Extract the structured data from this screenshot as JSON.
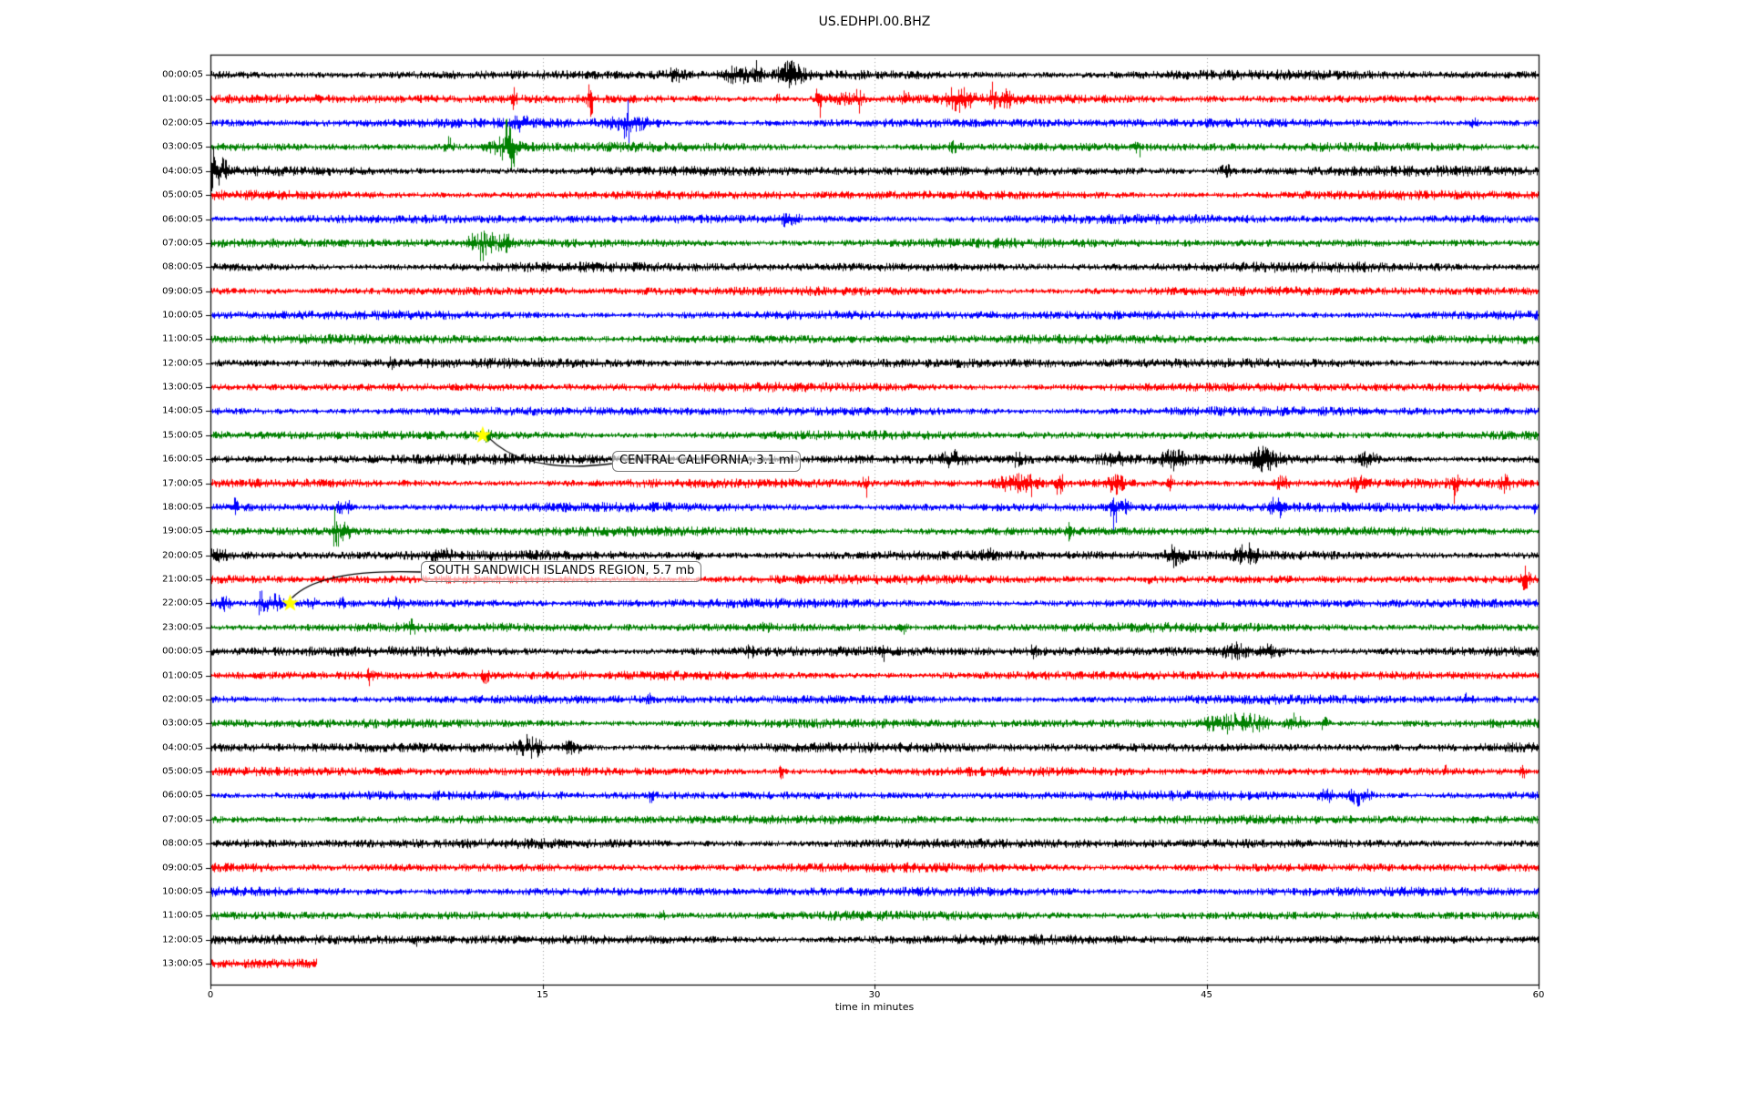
{
  "title": "US.EDHPI.00.BHZ",
  "chart_data": {
    "type": "line",
    "subtype": "seismogram-helicorder",
    "title": "US.EDHPI.00.BHZ",
    "xlabel": "time in minutes",
    "x_range": [
      0,
      60
    ],
    "x_ticks": [
      0,
      15,
      30,
      45,
      60
    ],
    "grid": {
      "vertical_dotted_at": [
        15,
        30,
        45
      ],
      "color": "#999999"
    },
    "trace_color_cycle": [
      "#000000",
      "#ff0000",
      "#0000ff",
      "#008000"
    ],
    "marker_color": "#ffff00",
    "rows": [
      {
        "label": "00:00:05",
        "color": "#000000",
        "duration": 60,
        "events": [
          [
            21.0,
            2,
            0.3
          ],
          [
            23.8,
            2.5,
            0.35
          ],
          [
            24.7,
            4.5,
            0.1
          ],
          [
            26.2,
            3,
            0.4
          ]
        ]
      },
      {
        "label": "01:00:05",
        "color": "#ff0000",
        "duration": 60,
        "events": [
          [
            13.7,
            3,
            0.08
          ],
          [
            17.15,
            6,
            0.08
          ],
          [
            25.6,
            3,
            0.08
          ],
          [
            27.5,
            9,
            0.09
          ],
          [
            28.4,
            2.5,
            0.5
          ],
          [
            29.3,
            4,
            0.15
          ],
          [
            31.4,
            3,
            0.1
          ],
          [
            33.8,
            3,
            0.4
          ],
          [
            35.3,
            4,
            0.08
          ],
          [
            35.9,
            2.5,
            0.2
          ]
        ]
      },
      {
        "label": "02:00:05",
        "color": "#0000ff",
        "duration": 60,
        "events": [
          [
            14.0,
            2,
            0.3
          ],
          [
            18.8,
            6,
            0.1
          ],
          [
            19.0,
            2.5,
            0.8
          ],
          [
            57.0,
            2.5,
            0.15
          ]
        ]
      },
      {
        "label": "03:00:05",
        "color": "#008000",
        "duration": 60,
        "events": [
          [
            10.75,
            3.5,
            0.12
          ],
          [
            13.3,
            3,
            0.5
          ],
          [
            13.5,
            8,
            0.15
          ],
          [
            33.6,
            2,
            0.15
          ],
          [
            41.9,
            3.5,
            0.08
          ]
        ]
      },
      {
        "label": "04:00:05",
        "color": "#000000",
        "duration": 60,
        "events": [
          [
            0.2,
            5,
            0.3
          ],
          [
            45.9,
            2.8,
            0.2
          ]
        ]
      },
      {
        "label": "05:00:05",
        "color": "#ff0000",
        "duration": 60,
        "events": []
      },
      {
        "label": "06:00:05",
        "color": "#0000ff",
        "duration": 60,
        "events": [
          [
            26.1,
            2.5,
            0.3
          ]
        ]
      },
      {
        "label": "07:00:05",
        "color": "#008000",
        "duration": 60,
        "events": [
          [
            12.3,
            4.5,
            0.4
          ],
          [
            13.2,
            3,
            0.25
          ]
        ]
      },
      {
        "label": "08:00:05",
        "color": "#000000",
        "duration": 60,
        "events": []
      },
      {
        "label": "09:00:05",
        "color": "#ff0000",
        "duration": 60,
        "events": []
      },
      {
        "label": "10:00:05",
        "color": "#0000ff",
        "duration": 60,
        "events": []
      },
      {
        "label": "11:00:05",
        "color": "#008000",
        "duration": 60,
        "events": []
      },
      {
        "label": "12:00:05",
        "color": "#000000",
        "duration": 60,
        "events": [
          [
            8.2,
            2,
            0.1
          ]
        ]
      },
      {
        "label": "13:00:05",
        "color": "#ff0000",
        "duration": 60,
        "events": []
      },
      {
        "label": "14:00:05",
        "color": "#0000ff",
        "duration": 60,
        "events": []
      },
      {
        "label": "15:00:05",
        "color": "#008000",
        "duration": 60,
        "events": [
          [
            12.4,
            1.8,
            0.2
          ]
        ]
      },
      {
        "label": "16:00:05",
        "color": "#000000",
        "duration": 60,
        "events": [
          [
            33.6,
            2.2,
            0.4
          ],
          [
            36.4,
            2,
            0.25
          ],
          [
            40.8,
            2.2,
            0.4
          ],
          [
            43.5,
            2.5,
            0.4
          ],
          [
            47.5,
            2.8,
            0.5
          ],
          [
            52.3,
            2.5,
            0.3
          ]
        ]
      },
      {
        "label": "17:00:05",
        "color": "#ff0000",
        "duration": 60,
        "events": [
          [
            29.6,
            4,
            0.08
          ],
          [
            36.3,
            3,
            0.5
          ],
          [
            37.2,
            3.5,
            0.2
          ],
          [
            38.3,
            6,
            0.12
          ],
          [
            40.9,
            3,
            0.3
          ],
          [
            43.3,
            4,
            0.08
          ],
          [
            48.4,
            2.5,
            0.25
          ],
          [
            51.8,
            2.5,
            0.2
          ],
          [
            56.2,
            4.5,
            0.08
          ],
          [
            58.5,
            2.5,
            0.15
          ]
        ]
      },
      {
        "label": "18:00:05",
        "color": "#0000ff",
        "duration": 60,
        "events": [
          [
            1.05,
            3,
            0.1
          ],
          [
            5.9,
            3,
            0.15
          ],
          [
            6.3,
            2.5,
            0.1
          ],
          [
            40.8,
            7,
            0.08
          ],
          [
            41.2,
            2.5,
            0.3
          ],
          [
            47.9,
            6,
            0.07
          ],
          [
            48.3,
            3,
            0.2
          ],
          [
            59.8,
            2.5,
            0.08
          ]
        ]
      },
      {
        "label": "19:00:05",
        "color": "#008000",
        "duration": 60,
        "events": [
          [
            5.65,
            9,
            0.08
          ],
          [
            6.1,
            3,
            0.3
          ],
          [
            38.8,
            2.5,
            0.08
          ]
        ]
      },
      {
        "label": "20:00:05",
        "color": "#000000",
        "duration": 60,
        "events": [
          [
            0.3,
            2.5,
            0.3
          ],
          [
            10.4,
            2.2,
            0.25
          ],
          [
            21.9,
            2.5,
            0.15
          ],
          [
            35.2,
            2,
            0.2
          ],
          [
            43.6,
            3,
            0.25
          ],
          [
            46.8,
            3.2,
            0.3
          ]
        ]
      },
      {
        "label": "21:00:05",
        "color": "#ff0000",
        "duration": 60,
        "events": [
          [
            42.5,
            1.8,
            0.15
          ],
          [
            59.4,
            3,
            0.12
          ]
        ]
      },
      {
        "label": "22:00:05",
        "color": "#0000ff",
        "duration": 60,
        "events": [
          [
            0.6,
            2.5,
            0.2
          ],
          [
            2.3,
            5,
            0.15
          ],
          [
            2.9,
            3,
            0.25
          ],
          [
            4.6,
            2,
            0.2
          ],
          [
            5.9,
            2.5,
            0.1
          ],
          [
            8.3,
            2,
            0.25
          ]
        ]
      },
      {
        "label": "23:00:05",
        "color": "#008000",
        "duration": 60,
        "events": [
          [
            9.1,
            2.2,
            0.1
          ],
          [
            25.1,
            1.8,
            0.15
          ],
          [
            31.3,
            2.5,
            0.12
          ]
        ]
      },
      {
        "label": "00:00:05",
        "color": "#000000",
        "duration": 60,
        "events": [
          [
            24.4,
            2,
            0.15
          ],
          [
            30.4,
            2.5,
            0.1
          ],
          [
            37.2,
            2,
            0.15
          ],
          [
            46.3,
            2.5,
            0.4
          ],
          [
            47.9,
            2.8,
            0.3
          ]
        ]
      },
      {
        "label": "01:00:05",
        "color": "#ff0000",
        "duration": 60,
        "events": [
          [
            7.2,
            3,
            0.1
          ],
          [
            12.4,
            3.2,
            0.1
          ]
        ]
      },
      {
        "label": "02:00:05",
        "color": "#0000ff",
        "duration": 60,
        "events": [
          [
            19.8,
            1.8,
            0.08
          ],
          [
            56.8,
            2.5,
            0.1
          ]
        ]
      },
      {
        "label": "03:00:05",
        "color": "#008000",
        "duration": 60,
        "events": [
          [
            45.9,
            3.5,
            0.6
          ],
          [
            47.2,
            2.8,
            0.4
          ],
          [
            49.0,
            3.5,
            0.25
          ],
          [
            50.3,
            2.5,
            0.15
          ]
        ]
      },
      {
        "label": "04:00:05",
        "color": "#000000",
        "duration": 60,
        "events": [
          [
            14.4,
            3.5,
            0.4
          ],
          [
            16.3,
            2.8,
            0.3
          ]
        ]
      },
      {
        "label": "05:00:05",
        "color": "#ff0000",
        "duration": 60,
        "events": [
          [
            25.8,
            3,
            0.08
          ],
          [
            55.8,
            2,
            0.08
          ],
          [
            59.3,
            2.2,
            0.1
          ]
        ]
      },
      {
        "label": "06:00:05",
        "color": "#0000ff",
        "duration": 60,
        "events": [
          [
            19.9,
            2.5,
            0.08
          ],
          [
            50.4,
            2.8,
            0.3
          ],
          [
            51.9,
            3.8,
            0.3
          ]
        ]
      },
      {
        "label": "07:00:05",
        "color": "#008000",
        "duration": 60,
        "events": []
      },
      {
        "label": "08:00:05",
        "color": "#000000",
        "duration": 60,
        "events": []
      },
      {
        "label": "09:00:05",
        "color": "#ff0000",
        "duration": 60,
        "events": []
      },
      {
        "label": "10:00:05",
        "color": "#0000ff",
        "duration": 60,
        "events": []
      },
      {
        "label": "11:00:05",
        "color": "#008000",
        "duration": 60,
        "events": [
          [
            20.4,
            2.5,
            0.08
          ]
        ]
      },
      {
        "label": "12:00:05",
        "color": "#000000",
        "duration": 60,
        "events": [
          [
            9.3,
            1.7,
            0.1
          ]
        ]
      },
      {
        "label": "13:00:05",
        "color": "#ff0000",
        "duration": 4.8,
        "events": []
      }
    ],
    "annotations": [
      {
        "text": "CENTRAL CALIFORNIA, 3.1 ml",
        "row_index": 15,
        "minute": 12.3
      },
      {
        "text": "SOUTH SANDWICH ISLANDS REGION, 5.7 mb",
        "row_index": 22,
        "minute": 3.6
      }
    ]
  }
}
